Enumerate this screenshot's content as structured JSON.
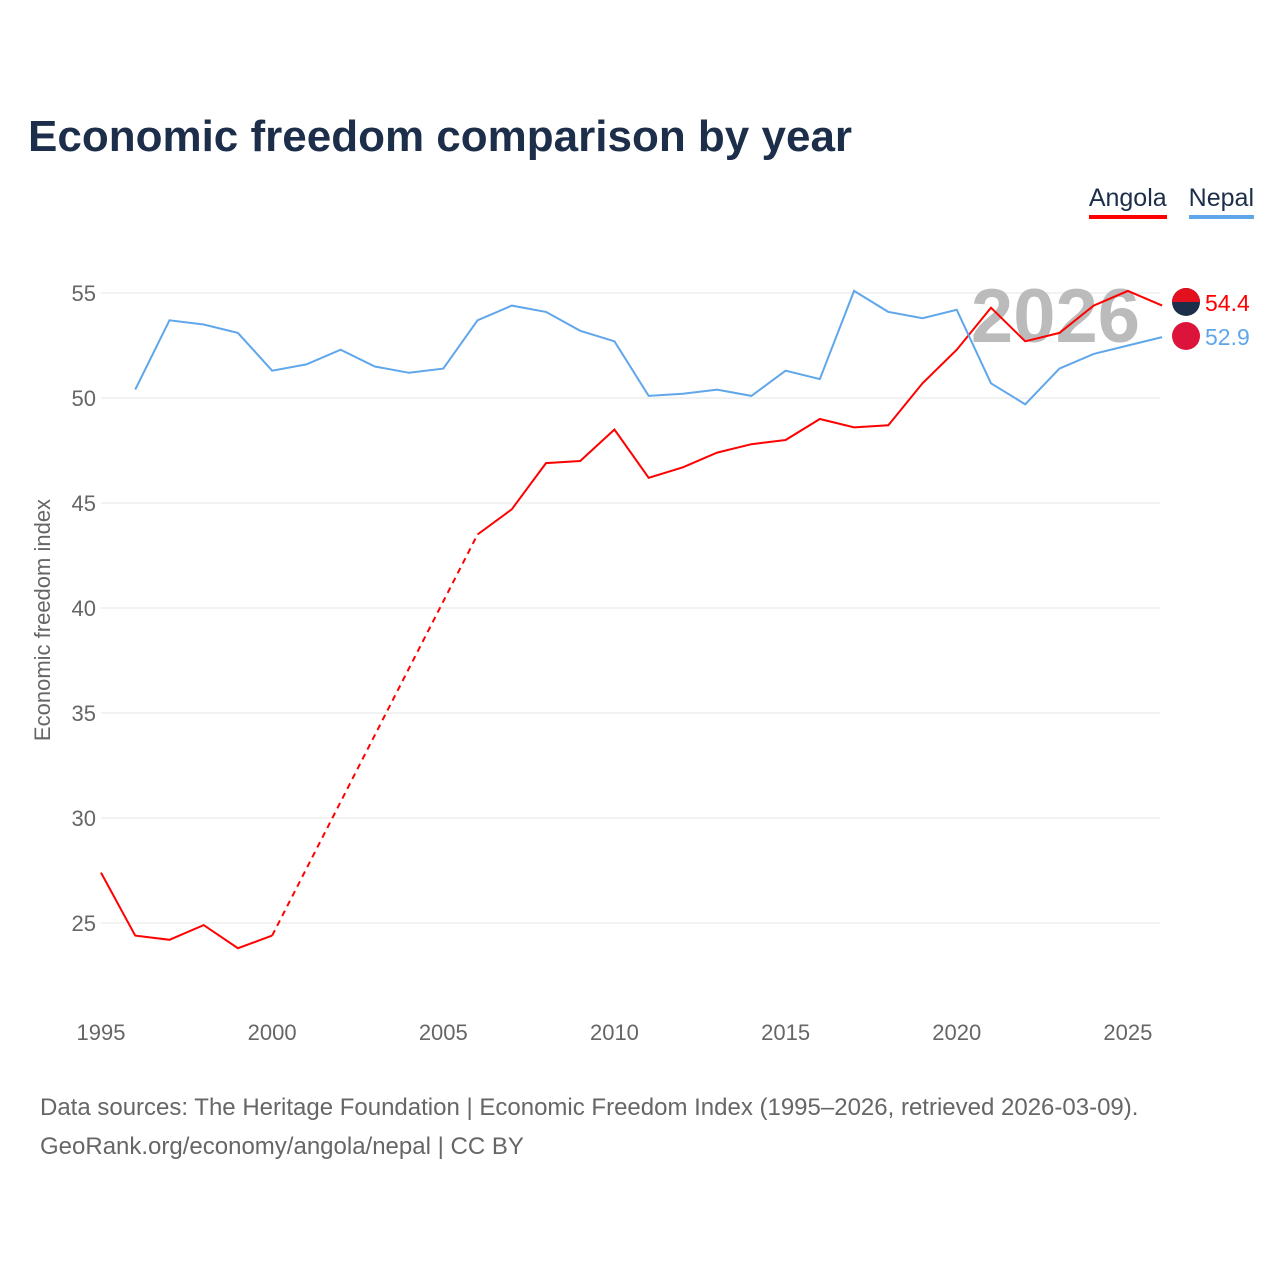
{
  "title": "Economic freedom comparison by year",
  "footer": {
    "line1": "Data sources: The Heritage Foundation | Economic Freedom Index (1995–2026, retrieved 2026-03-09).",
    "line2": "GeoRank.org/economy/angola/nepal | CC BY"
  },
  "chart_data": {
    "type": "line",
    "title": "Economic freedom comparison by year",
    "ylabel": "Economic freedom index",
    "xlabel": "",
    "year_watermark": "2026",
    "ylim": [
      21.5,
      56.5
    ],
    "xlim": [
      1995,
      2026
    ],
    "yticks": [
      25,
      30,
      35,
      40,
      45,
      50,
      55
    ],
    "xticks": [
      1995,
      2000,
      2005,
      2010,
      2015,
      2020,
      2025
    ],
    "grid": true,
    "legend_position": "top-right",
    "x": [
      1995,
      1996,
      1997,
      1998,
      1999,
      2000,
      2001,
      2002,
      2003,
      2004,
      2005,
      2006,
      2007,
      2008,
      2009,
      2010,
      2011,
      2012,
      2013,
      2014,
      2015,
      2016,
      2017,
      2018,
      2019,
      2020,
      2021,
      2022,
      2023,
      2024,
      2025,
      2026
    ],
    "series": [
      {
        "name": "Angola",
        "color": "#ff0000",
        "end_label": "54.4",
        "values": [
          27.4,
          24.4,
          24.2,
          24.9,
          23.8,
          24.4,
          null,
          null,
          null,
          null,
          null,
          43.5,
          44.7,
          46.9,
          47.0,
          48.5,
          46.2,
          46.7,
          47.4,
          47.8,
          48.0,
          49.0,
          48.6,
          48.7,
          50.7,
          52.3,
          54.3,
          52.7,
          53.1,
          54.4,
          55.1,
          54.4
        ]
      },
      {
        "name": "Nepal",
        "color": "#5fa6ea",
        "end_label": "52.9",
        "values": [
          null,
          50.4,
          53.7,
          53.5,
          53.1,
          51.3,
          51.6,
          52.3,
          51.5,
          51.2,
          51.4,
          53.7,
          54.4,
          54.1,
          53.2,
          52.7,
          50.1,
          50.2,
          50.4,
          50.1,
          51.3,
          50.9,
          55.1,
          54.1,
          53.8,
          54.2,
          50.7,
          49.7,
          51.4,
          52.1,
          52.5,
          52.9
        ]
      }
    ]
  }
}
